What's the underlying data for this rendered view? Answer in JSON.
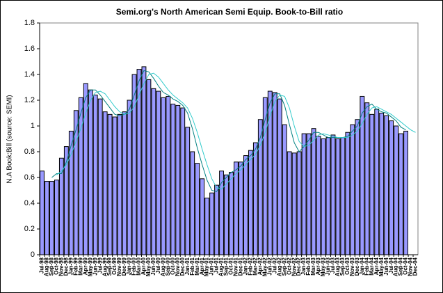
{
  "chart_data": {
    "type": "bar",
    "title": "Semi.org's  North American Semi Equip. Book-to-Bill ratio",
    "y_label": "N.A Book:Bill  (source: SEMI)",
    "categories": [
      "Jul-98",
      "Aug-98",
      "Sep-98",
      "Oct-98",
      "Nov-98",
      "Dec-98",
      "Jan-99",
      "Feb-99",
      "Mar-99",
      "Apr-99",
      "May-99",
      "Jun-99",
      "Jul-99",
      "Aug-99",
      "Sep-99",
      "Oct-99",
      "Nov-99",
      "Dec-99",
      "Jan-00",
      "Feb-00",
      "Mar-00",
      "Apr-00",
      "May-00",
      "Jun-00",
      "Jul-00",
      "Aug-00",
      "Sep-00",
      "Oct-00",
      "Nov-00",
      "Dec-00",
      "Jan-01",
      "Feb-01",
      "Mar-01",
      "Apr-01",
      "May-01",
      "Jun-01",
      "Jul-01",
      "Aug-01",
      "Sep-01",
      "Oct-01",
      "Nov-01",
      "Dec-01",
      "Jan-02",
      "Feb-02",
      "Mar-02",
      "Apr-02",
      "May-02",
      "Jun-02",
      "Jul-02",
      "Aug-02",
      "Sep-02",
      "Oct-02",
      "Nov-02",
      "Dec-02",
      "Jan-03",
      "Feb-03",
      "Mar-03",
      "Apr-03",
      "May-03",
      "Jun-03",
      "Jul-03",
      "Aug-03",
      "Sep-03",
      "Oct-03",
      "Nov-03",
      "Dec-03",
      "Jan-04",
      "Feb-04",
      "Mar-04",
      "Apr-04",
      "May-04",
      "Jun-04",
      "Jul-04",
      "Aug-04",
      "Sep-04",
      "Oct-04",
      "Nov-04",
      "Dec-04"
    ],
    "series": [
      {
        "type": "bar",
        "color": "#9999ff",
        "values": [
          0.65,
          0.57,
          0.57,
          0.58,
          0.75,
          0.84,
          0.96,
          1.12,
          1.22,
          1.33,
          1.28,
          1.24,
          1.21,
          1.11,
          1.09,
          1.07,
          1.09,
          1.11,
          1.2,
          1.4,
          1.44,
          1.46,
          1.36,
          1.29,
          1.27,
          1.22,
          1.23,
          1.17,
          1.16,
          1.14,
          0.99,
          0.8,
          0.71,
          0.59,
          0.44,
          0.48,
          0.54,
          0.65,
          0.62,
          0.64,
          0.72,
          0.72,
          0.77,
          0.81,
          0.87,
          1.05,
          1.22,
          1.27,
          1.26,
          1.21,
          1.01,
          0.8,
          0.79,
          0.8,
          0.94,
          0.94,
          0.98,
          0.92,
          0.9,
          0.91,
          0.93,
          0.9,
          0.91,
          0.95,
          1.01,
          1.05,
          1.23,
          1.18,
          1.09,
          1.13,
          1.1,
          1.08,
          1.04,
          1.0,
          0.94,
          0.96,
          null,
          null
        ]
      },
      {
        "type": "line",
        "color": "#008080",
        "values": [
          null,
          null,
          0.6,
          0.63,
          0.63,
          0.72,
          0.85,
          0.97,
          1.1,
          1.22,
          1.28,
          1.28,
          1.24,
          1.19,
          1.14,
          1.09,
          1.08,
          1.09,
          1.13,
          1.24,
          1.35,
          1.43,
          1.42,
          1.37,
          1.31,
          1.26,
          1.24,
          1.21,
          1.19,
          1.16,
          1.1,
          0.98,
          0.83,
          0.7,
          0.58,
          0.5,
          0.49,
          0.56,
          0.6,
          0.64,
          0.66,
          0.69,
          0.74,
          0.77,
          0.82,
          0.91,
          1.05,
          1.18,
          1.25,
          1.25,
          1.16,
          1.01,
          0.87,
          0.8,
          0.84,
          0.89,
          0.95,
          0.95,
          0.93,
          0.91,
          0.91,
          0.91,
          0.91,
          0.92,
          0.96,
          1.0,
          1.1,
          1.15,
          1.17,
          1.13,
          1.11,
          1.1,
          1.07,
          1.04,
          0.99,
          0.97,
          null,
          null
        ]
      },
      {
        "type": "line",
        "color": "#33cccc",
        "values": [
          null,
          null,
          null,
          0.62,
          0.65,
          0.7,
          0.78,
          0.88,
          0.98,
          1.1,
          1.2,
          1.26,
          1.27,
          1.25,
          1.2,
          1.15,
          1.11,
          1.09,
          1.1,
          1.15,
          1.24,
          1.33,
          1.4,
          1.41,
          1.38,
          1.33,
          1.28,
          1.24,
          1.21,
          1.18,
          1.14,
          1.06,
          0.95,
          0.82,
          0.7,
          0.59,
          0.52,
          0.51,
          0.55,
          0.59,
          0.63,
          0.66,
          0.7,
          0.74,
          0.78,
          0.85,
          0.95,
          1.08,
          1.19,
          1.24,
          1.23,
          1.14,
          1.0,
          0.88,
          0.84,
          0.85,
          0.89,
          0.93,
          0.94,
          0.93,
          0.92,
          0.91,
          0.91,
          0.91,
          0.93,
          0.96,
          1.02,
          1.09,
          1.14,
          1.15,
          1.13,
          1.11,
          1.09,
          1.06,
          1.03,
          1.0,
          0.97,
          0.95
        ]
      }
    ],
    "ylim": [
      0,
      1.8
    ],
    "yticks": [
      0,
      0.2,
      0.4,
      0.6,
      0.8,
      1,
      1.2,
      1.4,
      1.6,
      1.8
    ],
    "grid": false
  }
}
